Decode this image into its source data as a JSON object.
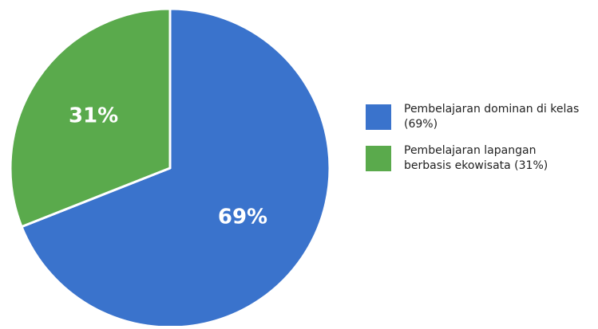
{
  "chart_data": {
    "type": "pie",
    "categories": [
      "Pembelajaran dominan di kelas",
      "Pembelajaran lapangan berbasis ekowisata"
    ],
    "values": [
      69,
      31
    ],
    "colors": [
      "#3a73cc",
      "#5aaa4c"
    ],
    "slice_labels": [
      "69%",
      "31%"
    ],
    "legend": {
      "placement": "right",
      "entries": [
        {
          "line1": "Pembelajaran dominan di kelas",
          "line2": "(69%)"
        },
        {
          "line1": "Pembelajaran lapangan",
          "line2": "berbasis ekowisata (31%)"
        }
      ]
    },
    "start_angle": "12 o'clock",
    "direction": "clockwise"
  }
}
